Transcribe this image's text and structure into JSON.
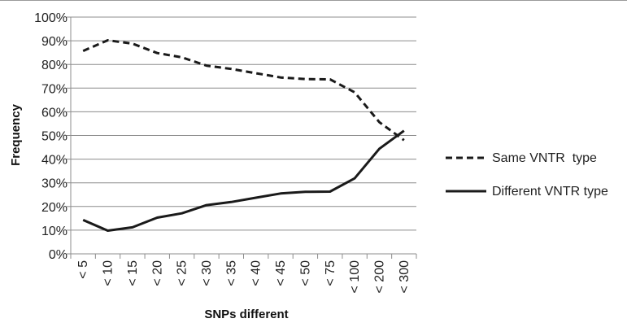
{
  "chart_data": {
    "type": "line",
    "xlabel": "SNPs different",
    "ylabel": "Frequency",
    "categories": [
      "< 5",
      "< 10",
      "< 15",
      "< 20",
      "< 25",
      "< 30",
      "< 35",
      "< 40",
      "< 45",
      "< 50",
      "< 75",
      "< 100",
      "< 200",
      "< 300"
    ],
    "ylim": [
      0,
      100
    ],
    "yticks": [
      0,
      10,
      20,
      30,
      40,
      50,
      60,
      70,
      80,
      90,
      100
    ],
    "ytick_labels": [
      "0%",
      "10%",
      "20%",
      "30%",
      "40%",
      "50%",
      "60%",
      "70%",
      "80%",
      "90%",
      "100%"
    ],
    "grid": true,
    "legend_position": "right",
    "series": [
      {
        "name": "Same VNTR  type",
        "style": "dashed",
        "color": "#1a1a1a",
        "values": [
          85.7,
          90.2,
          88.8,
          84.8,
          83.0,
          79.5,
          78.1,
          76.3,
          74.5,
          73.8,
          73.7,
          68.2,
          55.6,
          48.0
        ]
      },
      {
        "name": "Different VNTR type",
        "style": "solid",
        "color": "#1a1a1a",
        "values": [
          14.3,
          9.8,
          11.2,
          15.3,
          17.1,
          20.6,
          21.9,
          23.7,
          25.5,
          26.2,
          26.3,
          31.9,
          44.4,
          52.0
        ]
      }
    ]
  }
}
